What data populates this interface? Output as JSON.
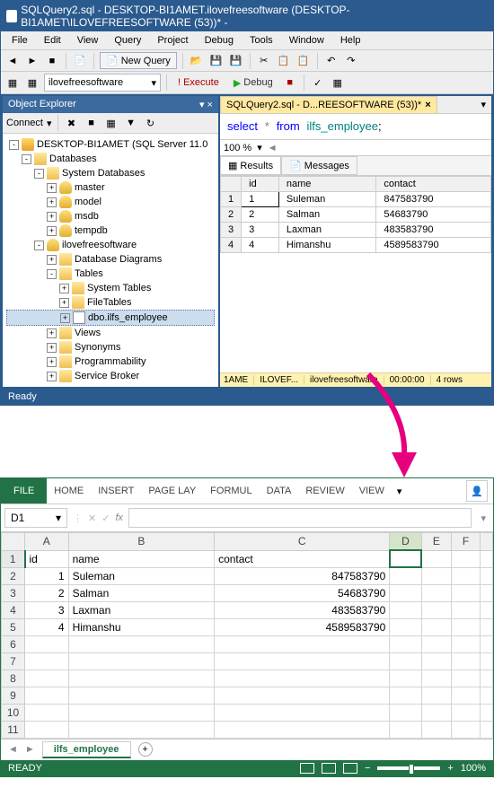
{
  "ssms": {
    "title": "SQLQuery2.sql - DESKTOP-BI1AMET.ilovefreesoftware (DESKTOP-BI1AMET\\ILOVEFREESOFTWARE (53))* -",
    "menu": [
      "File",
      "Edit",
      "View",
      "Query",
      "Project",
      "Debug",
      "Tools",
      "Window",
      "Help"
    ],
    "newquery": "New Query",
    "dbname": "ilovefreesoftware",
    "execute": "Execute",
    "debug": "Debug",
    "objexp": {
      "title": "Object Explorer",
      "connect": "Connect"
    },
    "tree": {
      "server": "DESKTOP-BI1AMET (SQL Server 11.0",
      "databases": "Databases",
      "sysdb": "System Databases",
      "master": "master",
      "model": "model",
      "msdb": "msdb",
      "tempdb": "tempdb",
      "userdb": "ilovefreesoftware",
      "diag": "Database Diagrams",
      "tables": "Tables",
      "systables": "System Tables",
      "filetables": "FileTables",
      "emp": "dbo.ilfs_employee",
      "views": "Views",
      "synonyms": "Synonyms",
      "prog": "Programmability",
      "svcbrk": "Service Broker"
    },
    "tab": "SQLQuery2.sql - D...REESOFTWARE (53))*",
    "sql": {
      "kw1": "select",
      "op": "*",
      "kw2": "from",
      "ident": "ilfs_employee",
      "semi": ";"
    },
    "zoom": "100 %",
    "results_tab": "Results",
    "messages_tab": "Messages",
    "columns": [
      "id",
      "name",
      "contact"
    ],
    "rows": [
      {
        "n": "1",
        "id": "1",
        "name": "Suleman",
        "contact": "847583790"
      },
      {
        "n": "2",
        "id": "2",
        "name": "Salman",
        "contact": "54683790"
      },
      {
        "n": "3",
        "id": "3",
        "name": "Laxman",
        "contact": "483583790"
      },
      {
        "n": "4",
        "id": "4",
        "name": "Himanshu",
        "contact": "4589583790"
      }
    ],
    "status": {
      "s1": "1AME",
      "s2": "ILOVEF...",
      "s3": "ilovefreesoftware",
      "s4": "00:00:00",
      "s5": "4 rows"
    },
    "ready": "Ready"
  },
  "arrow_color": "#e6007e",
  "excel": {
    "tabs": [
      "FILE",
      "HOME",
      "INSERT",
      "PAGE LAY",
      "FORMUL",
      "DATA",
      "REVIEW",
      "VIEW"
    ],
    "namebox": "D1",
    "fx": "fx",
    "colheads": [
      "A",
      "B",
      "C",
      "D",
      "E",
      "F"
    ],
    "data": [
      [
        "id",
        "name",
        "contact",
        "",
        "",
        ""
      ],
      [
        "1",
        "Suleman",
        "847583790",
        "",
        "",
        ""
      ],
      [
        "2",
        "Salman",
        "54683790",
        "",
        "",
        ""
      ],
      [
        "3",
        "Laxman",
        "483583790",
        "",
        "",
        ""
      ],
      [
        "4",
        "Himanshu",
        "4589583790",
        "",
        "",
        ""
      ]
    ],
    "rowcount": 11,
    "sheet": "ilfs_employee",
    "ready": "READY",
    "zoom": "100%"
  }
}
